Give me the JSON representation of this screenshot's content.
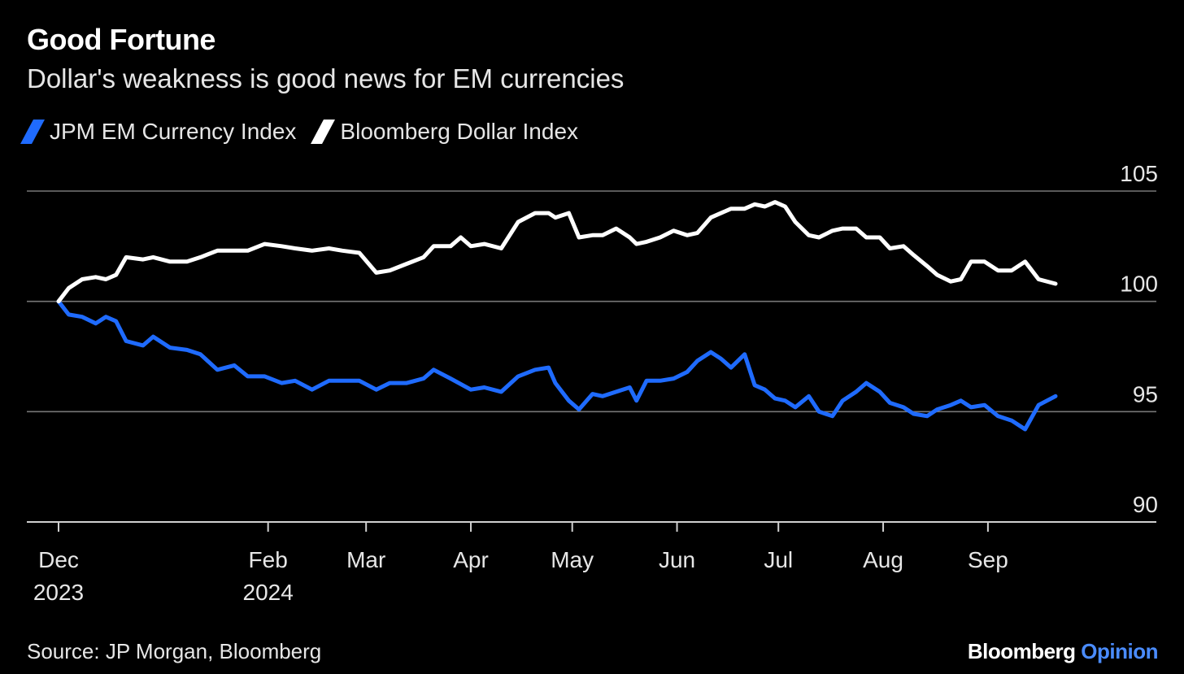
{
  "title": "Good Fortune",
  "subtitle": "Dollar's weakness is good news for EM currencies",
  "source": "Source: JP Morgan, Bloomberg",
  "brand": {
    "name": "Bloomberg",
    "product": "Opinion",
    "product_color": "#4a8cff"
  },
  "chart_data": {
    "type": "line",
    "title": "Good Fortune",
    "subtitle": "Dollar's weakness is good news for EM currencies",
    "xlabel": "",
    "ylabel": "",
    "x_range": [
      "2023-12-01",
      "2024-09-21"
    ],
    "ylim": [
      90,
      105
    ],
    "y_ticks": [
      "105",
      "100",
      "95",
      "90"
    ],
    "x_ticks": [
      {
        "label": "Dec",
        "sub": "2023",
        "date": "2023-12-01"
      },
      {
        "label": "Feb",
        "sub": "2024",
        "date": "2024-02-01"
      },
      {
        "label": "Mar",
        "sub": "",
        "date": "2024-03-01"
      },
      {
        "label": "Apr",
        "sub": "",
        "date": "2024-04-01"
      },
      {
        "label": "May",
        "sub": "",
        "date": "2024-05-01"
      },
      {
        "label": "Jun",
        "sub": "",
        "date": "2024-06-01"
      },
      {
        "label": "Jul",
        "sub": "",
        "date": "2024-07-01"
      },
      {
        "label": "Aug",
        "sub": "",
        "date": "2024-08-01"
      },
      {
        "label": "Sep",
        "sub": "",
        "date": "2024-09-01"
      }
    ],
    "legend_position": "top-left",
    "series": [
      {
        "name": "JPM EM Currency Index",
        "color": "#1f6bff",
        "points": [
          [
            "2023-12-01",
            100.0
          ],
          [
            "2023-12-04",
            99.4
          ],
          [
            "2023-12-08",
            99.3
          ],
          [
            "2023-12-12",
            99.0
          ],
          [
            "2023-12-15",
            99.3
          ],
          [
            "2023-12-18",
            99.1
          ],
          [
            "2023-12-21",
            98.2
          ],
          [
            "2023-12-26",
            98.0
          ],
          [
            "2023-12-29",
            98.4
          ],
          [
            "2024-01-03",
            97.9
          ],
          [
            "2024-01-08",
            97.8
          ],
          [
            "2024-01-12",
            97.6
          ],
          [
            "2024-01-17",
            96.9
          ],
          [
            "2024-01-22",
            97.1
          ],
          [
            "2024-01-26",
            96.6
          ],
          [
            "2024-01-31",
            96.6
          ],
          [
            "2024-02-05",
            96.3
          ],
          [
            "2024-02-09",
            96.4
          ],
          [
            "2024-02-14",
            96.0
          ],
          [
            "2024-02-19",
            96.4
          ],
          [
            "2024-02-23",
            96.4
          ],
          [
            "2024-02-28",
            96.4
          ],
          [
            "2024-03-04",
            96.0
          ],
          [
            "2024-03-08",
            96.3
          ],
          [
            "2024-03-13",
            96.3
          ],
          [
            "2024-03-18",
            96.5
          ],
          [
            "2024-03-21",
            96.9
          ],
          [
            "2024-03-26",
            96.5
          ],
          [
            "2024-04-01",
            96.0
          ],
          [
            "2024-04-05",
            96.1
          ],
          [
            "2024-04-10",
            95.9
          ],
          [
            "2024-04-15",
            96.6
          ],
          [
            "2024-04-20",
            96.9
          ],
          [
            "2024-04-24",
            97.0
          ],
          [
            "2024-04-26",
            96.3
          ],
          [
            "2024-04-30",
            95.5
          ],
          [
            "2024-05-03",
            95.1
          ],
          [
            "2024-05-07",
            95.8
          ],
          [
            "2024-05-10",
            95.7
          ],
          [
            "2024-05-14",
            95.9
          ],
          [
            "2024-05-18",
            96.1
          ],
          [
            "2024-05-20",
            95.5
          ],
          [
            "2024-05-23",
            96.4
          ],
          [
            "2024-05-27",
            96.4
          ],
          [
            "2024-05-31",
            96.5
          ],
          [
            "2024-06-04",
            96.8
          ],
          [
            "2024-06-07",
            97.3
          ],
          [
            "2024-06-11",
            97.7
          ],
          [
            "2024-06-14",
            97.4
          ],
          [
            "2024-06-17",
            97.0
          ],
          [
            "2024-06-21",
            97.6
          ],
          [
            "2024-06-24",
            96.2
          ],
          [
            "2024-06-27",
            96.0
          ],
          [
            "2024-06-30",
            95.6
          ],
          [
            "2024-07-03",
            95.5
          ],
          [
            "2024-07-06",
            95.2
          ],
          [
            "2024-07-10",
            95.7
          ],
          [
            "2024-07-13",
            95.0
          ],
          [
            "2024-07-17",
            94.8
          ],
          [
            "2024-07-20",
            95.5
          ],
          [
            "2024-07-24",
            95.9
          ],
          [
            "2024-07-27",
            96.3
          ],
          [
            "2024-07-31",
            95.9
          ],
          [
            "2024-08-03",
            95.4
          ],
          [
            "2024-08-07",
            95.2
          ],
          [
            "2024-08-10",
            94.9
          ],
          [
            "2024-08-14",
            94.8
          ],
          [
            "2024-08-17",
            95.1
          ],
          [
            "2024-08-21",
            95.3
          ],
          [
            "2024-08-24",
            95.5
          ],
          [
            "2024-08-27",
            95.2
          ],
          [
            "2024-08-31",
            95.3
          ],
          [
            "2024-09-04",
            94.8
          ],
          [
            "2024-09-08",
            94.6
          ],
          [
            "2024-09-12",
            94.2
          ],
          [
            "2024-09-16",
            95.3
          ],
          [
            "2024-09-21",
            95.7
          ]
        ]
      },
      {
        "name": "Bloomberg Dollar Index",
        "color": "#ffffff",
        "points": [
          [
            "2023-12-01",
            100.0
          ],
          [
            "2023-12-04",
            100.6
          ],
          [
            "2023-12-08",
            101.0
          ],
          [
            "2023-12-12",
            101.1
          ],
          [
            "2023-12-15",
            101.0
          ],
          [
            "2023-12-18",
            101.2
          ],
          [
            "2023-12-21",
            102.0
          ],
          [
            "2023-12-26",
            101.9
          ],
          [
            "2023-12-29",
            102.0
          ],
          [
            "2024-01-03",
            101.8
          ],
          [
            "2024-01-08",
            101.8
          ],
          [
            "2024-01-12",
            102.0
          ],
          [
            "2024-01-17",
            102.3
          ],
          [
            "2024-01-22",
            102.3
          ],
          [
            "2024-01-26",
            102.3
          ],
          [
            "2024-01-31",
            102.6
          ],
          [
            "2024-02-05",
            102.5
          ],
          [
            "2024-02-09",
            102.4
          ],
          [
            "2024-02-14",
            102.3
          ],
          [
            "2024-02-19",
            102.4
          ],
          [
            "2024-02-23",
            102.3
          ],
          [
            "2024-02-28",
            102.2
          ],
          [
            "2024-03-04",
            101.3
          ],
          [
            "2024-03-08",
            101.4
          ],
          [
            "2024-03-13",
            101.7
          ],
          [
            "2024-03-18",
            102.0
          ],
          [
            "2024-03-21",
            102.5
          ],
          [
            "2024-03-26",
            102.5
          ],
          [
            "2024-03-29",
            102.9
          ],
          [
            "2024-04-01",
            102.5
          ],
          [
            "2024-04-05",
            102.6
          ],
          [
            "2024-04-10",
            102.4
          ],
          [
            "2024-04-15",
            103.6
          ],
          [
            "2024-04-20",
            104.0
          ],
          [
            "2024-04-24",
            104.0
          ],
          [
            "2024-04-26",
            103.8
          ],
          [
            "2024-04-30",
            104.0
          ],
          [
            "2024-05-03",
            102.9
          ],
          [
            "2024-05-07",
            103.0
          ],
          [
            "2024-05-10",
            103.0
          ],
          [
            "2024-05-14",
            103.3
          ],
          [
            "2024-05-18",
            102.9
          ],
          [
            "2024-05-20",
            102.6
          ],
          [
            "2024-05-23",
            102.7
          ],
          [
            "2024-05-27",
            102.9
          ],
          [
            "2024-05-31",
            103.2
          ],
          [
            "2024-06-04",
            103.0
          ],
          [
            "2024-06-07",
            103.1
          ],
          [
            "2024-06-11",
            103.8
          ],
          [
            "2024-06-14",
            104.0
          ],
          [
            "2024-06-17",
            104.2
          ],
          [
            "2024-06-21",
            104.2
          ],
          [
            "2024-06-24",
            104.4
          ],
          [
            "2024-06-27",
            104.3
          ],
          [
            "2024-06-30",
            104.5
          ],
          [
            "2024-07-03",
            104.3
          ],
          [
            "2024-07-06",
            103.6
          ],
          [
            "2024-07-10",
            103.0
          ],
          [
            "2024-07-13",
            102.9
          ],
          [
            "2024-07-17",
            103.2
          ],
          [
            "2024-07-20",
            103.3
          ],
          [
            "2024-07-24",
            103.3
          ],
          [
            "2024-07-27",
            102.9
          ],
          [
            "2024-07-31",
            102.9
          ],
          [
            "2024-08-03",
            102.4
          ],
          [
            "2024-08-07",
            102.5
          ],
          [
            "2024-08-10",
            102.1
          ],
          [
            "2024-08-14",
            101.6
          ],
          [
            "2024-08-17",
            101.2
          ],
          [
            "2024-08-21",
            100.9
          ],
          [
            "2024-08-24",
            101.0
          ],
          [
            "2024-08-27",
            101.8
          ],
          [
            "2024-08-31",
            101.8
          ],
          [
            "2024-09-04",
            101.4
          ],
          [
            "2024-09-08",
            101.4
          ],
          [
            "2024-09-12",
            101.8
          ],
          [
            "2024-09-16",
            101.0
          ],
          [
            "2024-09-21",
            100.8
          ]
        ]
      }
    ]
  }
}
